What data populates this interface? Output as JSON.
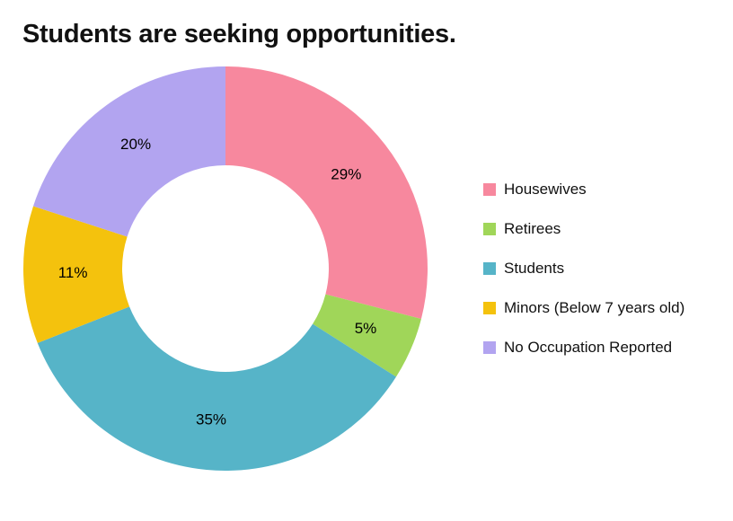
{
  "title": "Students are seeking opportunities.",
  "chart_data": {
    "type": "pie",
    "donut": true,
    "inner_radius_ratio": 0.51,
    "start_angle_deg": 0,
    "direction": "clockwise",
    "legend_position": "right",
    "title": "Students are seeking opportunities.",
    "categories": [
      "Housewives",
      "Retirees",
      "Students",
      "Minors (Below 7 years old)",
      "No Occupation Reported"
    ],
    "values": [
      29,
      5,
      35,
      11,
      20
    ],
    "labels": [
      "29%",
      "5%",
      "35%",
      "11%",
      "20%"
    ],
    "unit": "%",
    "colors": [
      "#F7889E",
      "#A0D659",
      "#56B4C8",
      "#F4C20D",
      "#B2A4F0"
    ],
    "label_color": "#000000"
  }
}
